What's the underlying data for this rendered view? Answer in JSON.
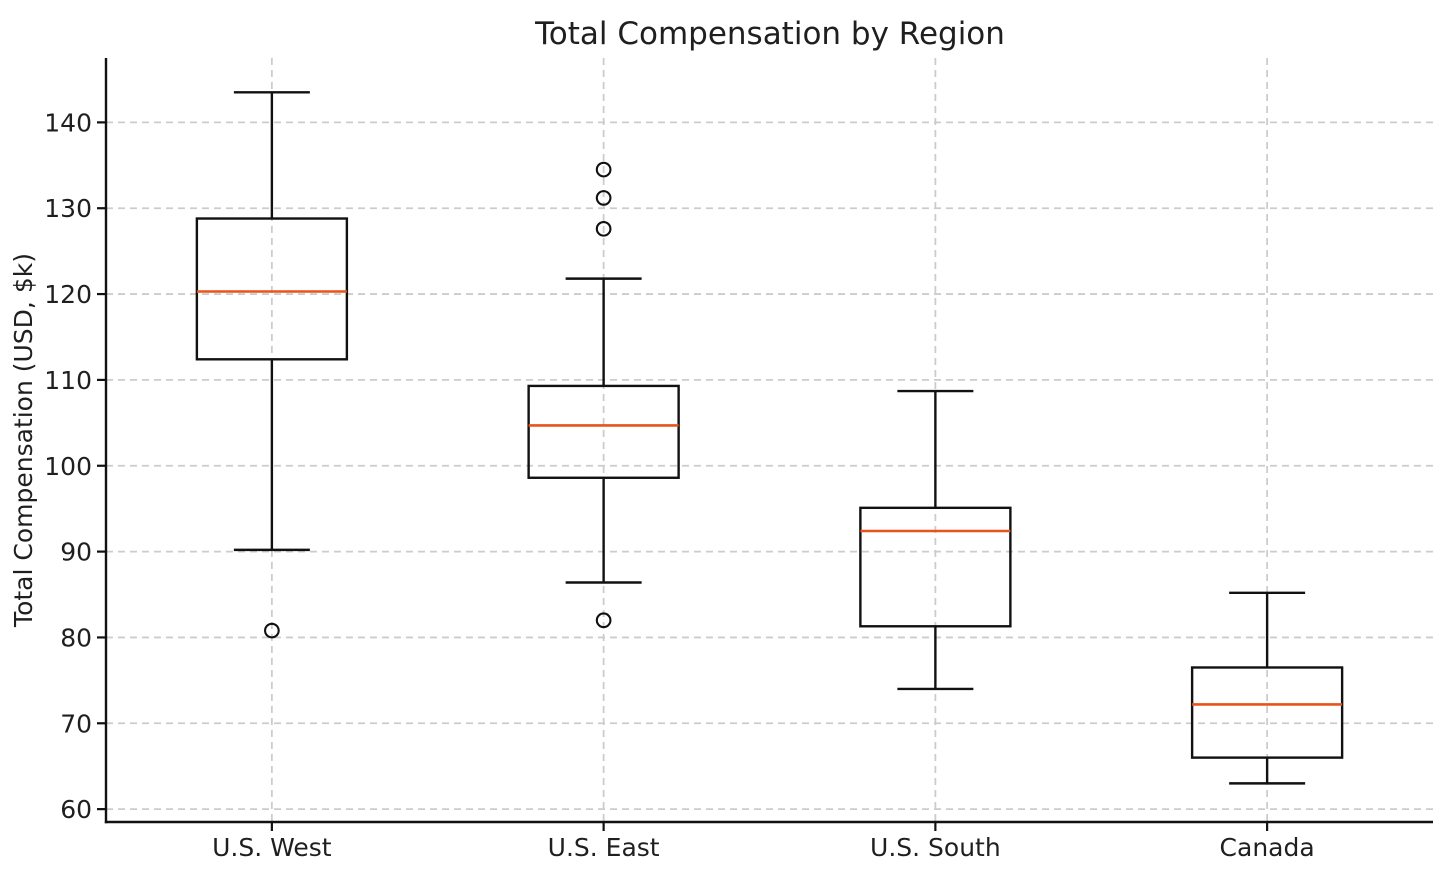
{
  "figure": {
    "background": "#ffffff"
  },
  "chart_data": {
    "type": "box",
    "title": "Total Compensation by Region",
    "ylabel": "Total Compensation (USD, $k)",
    "xlabel": "",
    "categories": [
      "U.S. West",
      "U.S. East",
      "U.S. South",
      "Canada"
    ],
    "yticks": [
      60,
      70,
      80,
      90,
      100,
      110,
      120,
      130,
      140
    ],
    "ylim": [
      58.5,
      147.5
    ],
    "grid": {
      "horizontal": true,
      "vertical": true,
      "style": "dashed",
      "color": "#cccccc"
    },
    "legend": "none",
    "colors": {
      "box_line": "#111111",
      "median": "#e8531b",
      "text": "#1f1f1f",
      "grid": "#cccccc"
    },
    "series": [
      {
        "name": "U.S. West",
        "whisker_low": 90.2,
        "q1": 112.4,
        "median": 120.3,
        "q3": 128.8,
        "whisker_high": 143.5,
        "outliers": [
          80.8
        ]
      },
      {
        "name": "U.S. East",
        "whisker_low": 86.4,
        "q1": 98.6,
        "median": 104.7,
        "q3": 109.3,
        "whisker_high": 121.8,
        "outliers": [
          134.5,
          131.2,
          127.6,
          82.0
        ]
      },
      {
        "name": "U.S. South",
        "whisker_low": 74.0,
        "q1": 81.3,
        "median": 92.4,
        "q3": 95.1,
        "whisker_high": 108.7,
        "outliers": []
      },
      {
        "name": "Canada",
        "whisker_low": 63.0,
        "q1": 66.0,
        "median": 72.2,
        "q3": 76.5,
        "whisker_high": 85.2,
        "outliers": []
      }
    ]
  }
}
